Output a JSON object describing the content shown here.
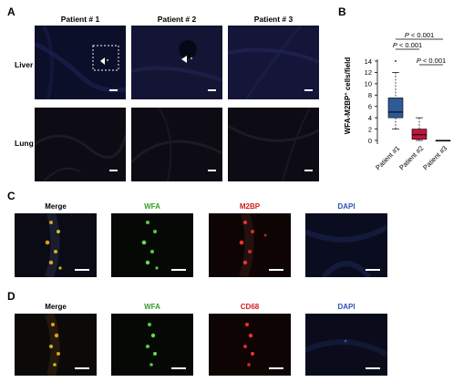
{
  "figure": {
    "panel_a": {
      "label": "A",
      "columns": [
        "Patient # 1",
        "Patient # 2",
        "Patient # 3"
      ],
      "rows": [
        "Liver",
        "Lung"
      ]
    },
    "panel_b": {
      "label": "B"
    },
    "panel_c": {
      "label": "C",
      "channels": [
        "Merge",
        "WFA",
        "M2BP",
        "DAPI"
      ]
    },
    "panel_d": {
      "label": "D",
      "channels": [
        "Merge",
        "WFA",
        "CD68",
        "DAPI"
      ]
    },
    "colors": {
      "wfa": "#3a9b2c",
      "m2bp": "#d21e1e",
      "cd68": "#d21e1e",
      "dapi": "#2a52b5",
      "patient1_box": "#2e5a96",
      "patient2_box": "#c0143c",
      "patient3_box": "#1a1a1a"
    }
  },
  "chart_data": {
    "type": "boxplot",
    "ylabel_parts": [
      "WFA-M2BP",
      "+",
      " cells/field"
    ],
    "ylim": [
      0,
      14
    ],
    "yticks": [
      "0",
      "2",
      "4",
      "6",
      "8",
      "10",
      "12",
      "14"
    ],
    "categories": [
      "Patient #1",
      "Patient #2",
      "Patient #3"
    ],
    "boxes": [
      {
        "name": "Patient #1",
        "min": 2,
        "q1": 4,
        "median": 5,
        "q3": 7.5,
        "max": 12,
        "outliers": [
          14
        ]
      },
      {
        "name": "Patient #2",
        "min": 0,
        "q1": 0.2,
        "median": 1,
        "q3": 2,
        "max": 4,
        "outliers": []
      },
      {
        "name": "Patient #3",
        "min": 0,
        "q1": 0,
        "median": 0,
        "q3": 0,
        "max": 0,
        "outliers": []
      }
    ],
    "comparisons": [
      {
        "from": 0,
        "to": 2,
        "p_italic": "P",
        "p_rest": " < 0.001"
      },
      {
        "from": 0,
        "to": 1,
        "p_italic": "P",
        "p_rest": " < 0.001"
      },
      {
        "from": 1,
        "to": 2,
        "p_italic": "P",
        "p_rest": " < 0.001"
      }
    ]
  }
}
